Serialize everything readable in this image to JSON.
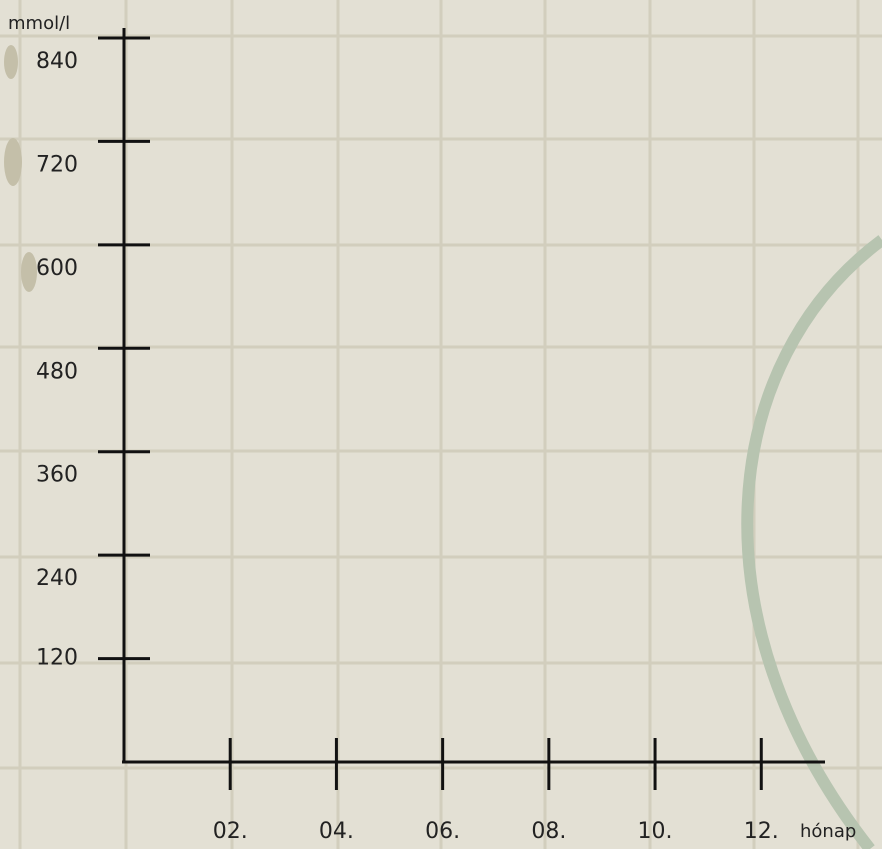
{
  "chart_data": {
    "type": "line",
    "xlabel": "hónap",
    "ylabel": "mmol/l",
    "xlim": [
      0,
      13.2
    ],
    "xticks": [
      {
        "value": 2,
        "label": "02."
      },
      {
        "value": 4,
        "label": "04."
      },
      {
        "value": 6,
        "label": "06."
      },
      {
        "value": 8,
        "label": "08."
      },
      {
        "value": 10,
        "label": "10."
      },
      {
        "value": 12,
        "label": "12."
      }
    ],
    "ylim": [
      0,
      840
    ],
    "yticks": [
      120,
      240,
      360,
      480,
      600,
      720,
      840
    ]
  }
}
